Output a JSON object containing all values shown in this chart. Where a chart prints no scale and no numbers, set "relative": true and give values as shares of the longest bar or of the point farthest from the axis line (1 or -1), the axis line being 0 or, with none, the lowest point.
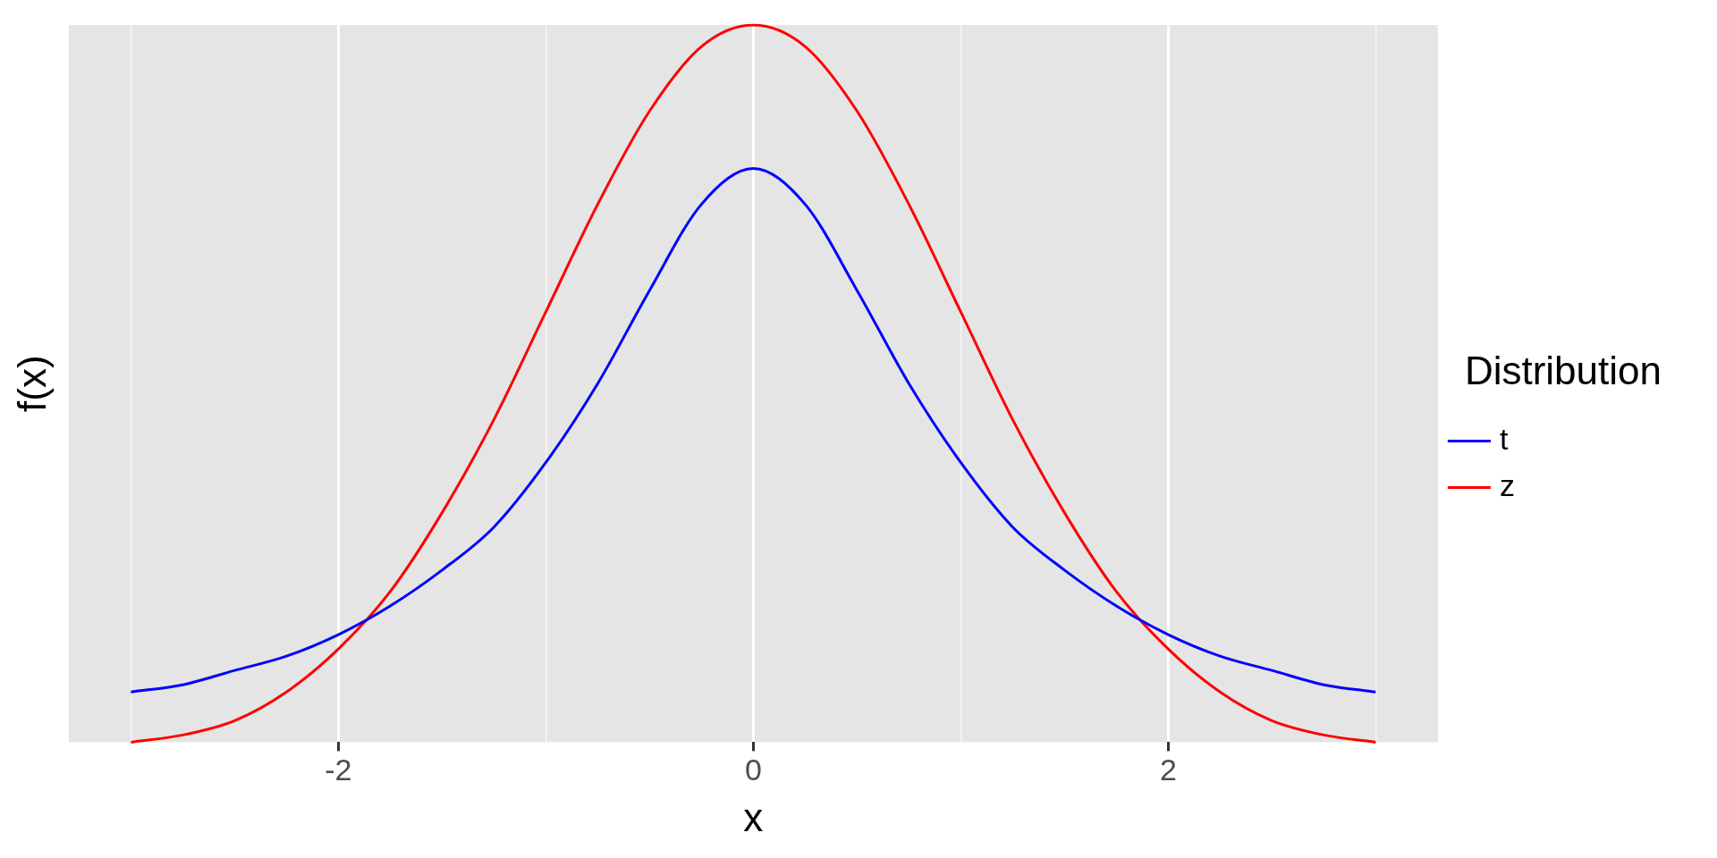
{
  "chart_data": {
    "type": "line",
    "xlabel": "x",
    "ylabel": "f(x)",
    "legend_title": "Distribution",
    "relative": true,
    "x": [
      -3,
      -2.75,
      -2.5,
      -2.25,
      -2,
      -1.75,
      -1.5,
      -1.25,
      -1,
      -0.75,
      -0.5,
      -0.25,
      0,
      0.25,
      0.5,
      0.75,
      1,
      1.25,
      1.5,
      1.75,
      2,
      2.25,
      2.5,
      2.75,
      3
    ],
    "series": [
      {
        "name": "t",
        "color": "#0000ff",
        "values": [
          0.07,
          0.08,
          0.1,
          0.12,
          0.15,
          0.19,
          0.24,
          0.3,
          0.39,
          0.5,
          0.63,
          0.75,
          0.8,
          0.75,
          0.63,
          0.5,
          0.39,
          0.3,
          0.24,
          0.19,
          0.15,
          0.12,
          0.1,
          0.08,
          0.07
        ]
      },
      {
        "name": "z",
        "color": "#ff0000",
        "values": [
          0,
          0.01,
          0.03,
          0.07,
          0.13,
          0.21,
          0.32,
          0.45,
          0.6,
          0.75,
          0.88,
          0.97,
          1,
          0.97,
          0.88,
          0.75,
          0.6,
          0.45,
          0.32,
          0.21,
          0.13,
          0.07,
          0.03,
          0.01,
          0
        ]
      }
    ],
    "xlim": [
      -3.3,
      3.3
    ],
    "xticks": [
      {
        "value": -3,
        "label": null
      },
      -2,
      {
        "value": -1,
        "label": null
      },
      0,
      {
        "value": 1,
        "label": null
      },
      2,
      {
        "value": 3,
        "label": null
      }
    ],
    "grid": "x",
    "legend": "right",
    "marker": "none",
    "line_style": "solid"
  }
}
